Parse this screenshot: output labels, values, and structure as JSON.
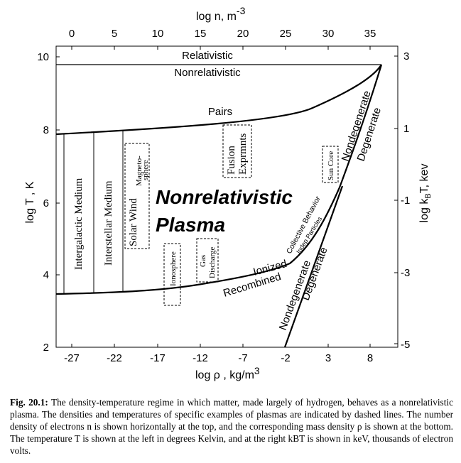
{
  "top_axis": {
    "label_base": "log n, m",
    "label_exp": "-3",
    "ticks": [
      "0",
      "5",
      "10",
      "15",
      "20",
      "25",
      "30",
      "35"
    ]
  },
  "bottom_axis": {
    "label_base": "log ρ , kg/m",
    "label_exp": "3",
    "ticks": [
      "-27",
      "-22",
      "-17",
      "-12",
      "-7",
      "-2",
      "3",
      "8"
    ]
  },
  "left_axis": {
    "label": "log  T , K",
    "ticks": [
      "10",
      "8",
      "6",
      "4",
      "2"
    ]
  },
  "right_axis": {
    "label": "log kBT, kev",
    "label_pre": "log k",
    "label_sub": "B",
    "label_post": "T, kev",
    "ticks": [
      "3",
      "1",
      "-1",
      "-3",
      "-5"
    ]
  },
  "regions": {
    "relativistic": "Relativistic",
    "nonrelativistic": "Nonrelativistic",
    "pairs": "Pairs",
    "ionized": "Ionized",
    "recombined": "Recombined",
    "nondegenerate_upper": "Nondegenerate",
    "degenerate_upper": "Degenerate",
    "nondegenerate_lower": "Nondegenerate",
    "degenerate_lower": "Degenerate",
    "collective": "Collective Behavior",
    "indep": "Indep Particles",
    "plasma_line1": "Nonrelativistic",
    "plasma_line2": "Plasma"
  },
  "examples": {
    "intergalactic": "Intergalactic Medium",
    "interstellar": "Interstellar Medium",
    "solar_wind": "Solar Wind",
    "magneto_1": "Magneto-",
    "magneto_2": "sphere",
    "ionosphere": "Ionosphere",
    "gas_1": "Gas",
    "gas_2": "Discharge",
    "fusion_1": "Fusion",
    "fusion_2": "Exprmnts",
    "sun_core": "Sun Core"
  },
  "caption": {
    "lead": "Fig. 20.1:",
    "text": "The density-temperature regime in which matter, made largely of hydrogen, behaves as a nonrelativistic plasma. The densities and temperatures of specific examples of plasmas are indicated by dashed lines. The number density of electrons n is shown horizontally at the top, and the corresponding mass density ρ is shown at the bottom. The temperature T is shown at the left in degrees Kelvin, and at the right kBT is shown in keV, thousands of electron volts."
  }
}
